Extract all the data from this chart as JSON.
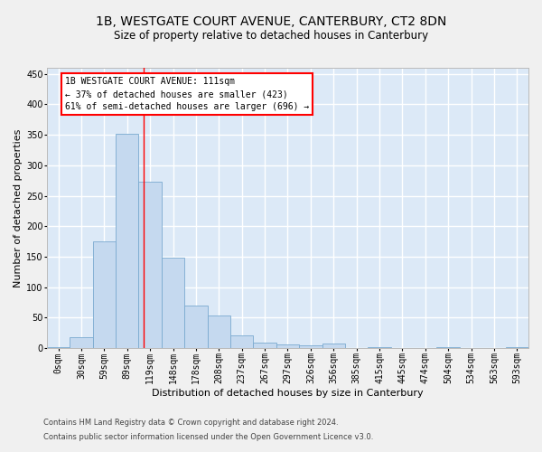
{
  "title_line1": "1B, WESTGATE COURT AVENUE, CANTERBURY, CT2 8DN",
  "title_line2": "Size of property relative to detached houses in Canterbury",
  "xlabel": "Distribution of detached houses by size in Canterbury",
  "ylabel": "Number of detached properties",
  "bar_color": "#c5d9ef",
  "bar_edge_color": "#7aaad0",
  "background_color": "#dce9f7",
  "grid_color": "#ffffff",
  "fig_facecolor": "#f0f0f0",
  "categories": [
    "0sqm",
    "30sqm",
    "59sqm",
    "89sqm",
    "119sqm",
    "148sqm",
    "178sqm",
    "208sqm",
    "237sqm",
    "267sqm",
    "297sqm",
    "326sqm",
    "356sqm",
    "385sqm",
    "415sqm",
    "445sqm",
    "474sqm",
    "504sqm",
    "534sqm",
    "563sqm",
    "593sqm"
  ],
  "values": [
    2,
    18,
    175,
    352,
    273,
    148,
    70,
    53,
    21,
    9,
    6,
    5,
    7,
    0,
    2,
    0,
    0,
    2,
    0,
    0,
    2
  ],
  "red_line_x": 3.72,
  "annotation_text": "1B WESTGATE COURT AVENUE: 111sqm\n← 37% of detached houses are smaller (423)\n61% of semi-detached houses are larger (696) →",
  "ylim": [
    0,
    460
  ],
  "yticks": [
    0,
    50,
    100,
    150,
    200,
    250,
    300,
    350,
    400,
    450
  ],
  "footnote_line1": "Contains HM Land Registry data © Crown copyright and database right 2024.",
  "footnote_line2": "Contains public sector information licensed under the Open Government Licence v3.0.",
  "title_fontsize": 10,
  "subtitle_fontsize": 8.5,
  "tick_fontsize": 7,
  "ylabel_fontsize": 8,
  "xlabel_fontsize": 8,
  "annot_fontsize": 7,
  "footnote_fontsize": 6
}
